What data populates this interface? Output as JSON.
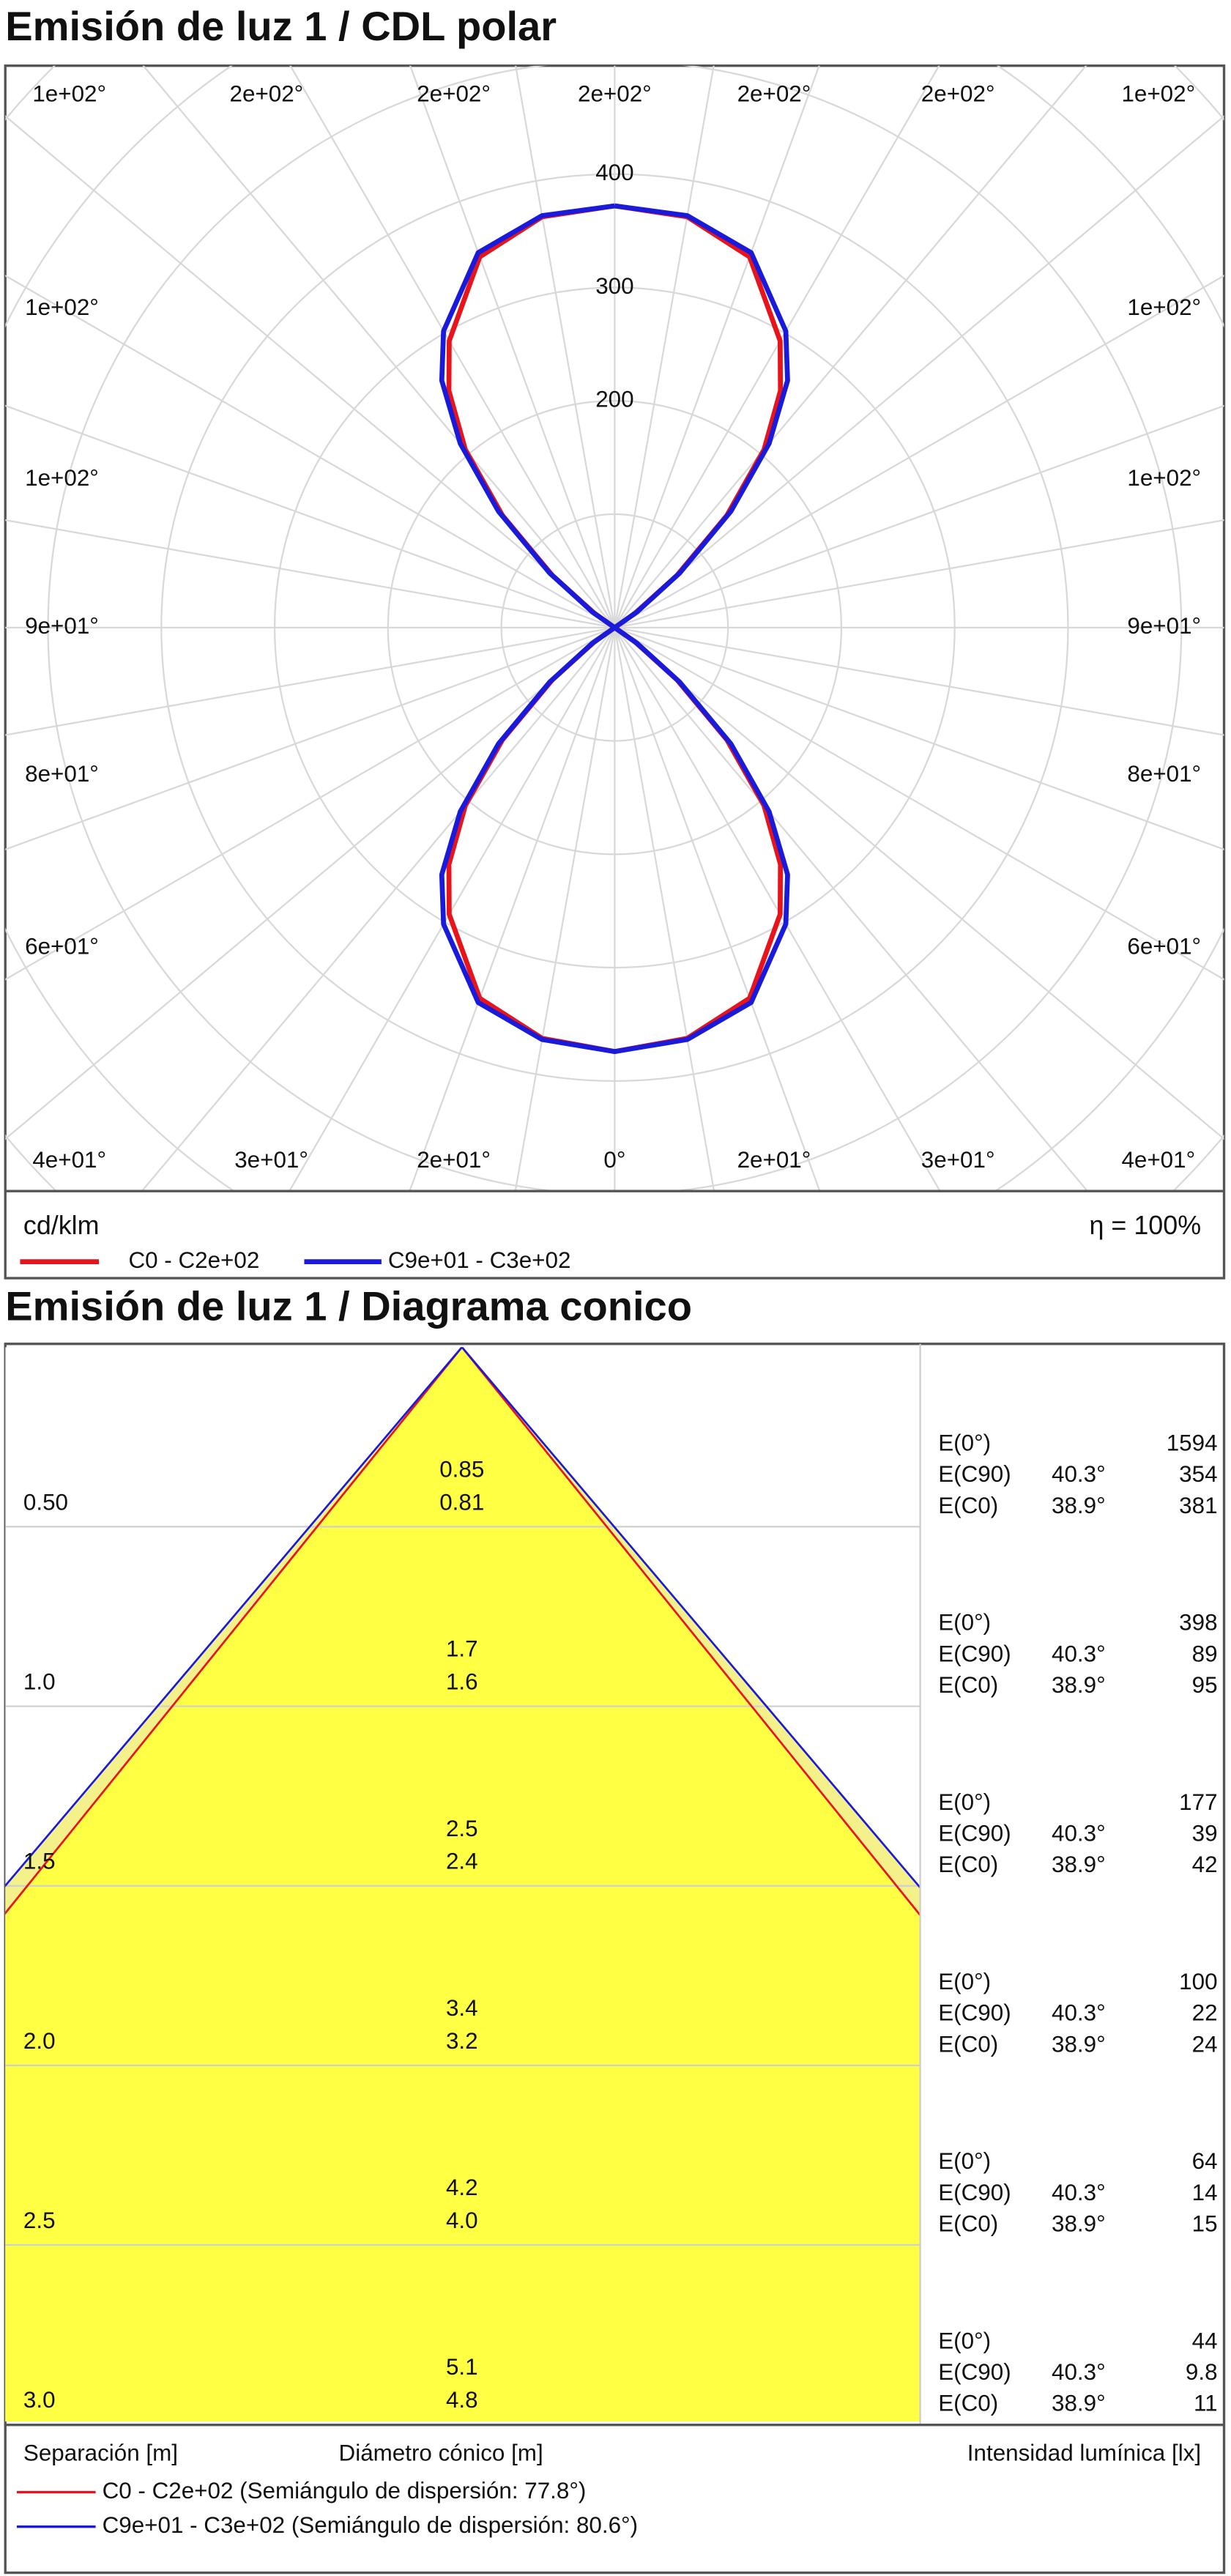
{
  "chart_data": [
    {
      "type": "polar",
      "title": "Emisión de luz 1 / CDL polar",
      "unit_label": "cd/klm",
      "efficiency_label": "η = 100%",
      "angle_labels": {
        "top": [
          "1e+02°",
          "2e+02°",
          "2e+02°",
          "2e+02°",
          "2e+02°",
          "2e+02°",
          "1e+02°"
        ],
        "left": [
          "1e+02°",
          "1e+02°",
          "9e+01°",
          "8e+01°",
          "6e+01°"
        ],
        "right": [
          "1e+02°",
          "1e+02°",
          "9e+01°",
          "8e+01°",
          "6e+01°"
        ],
        "bottom": [
          "4e+01°",
          "3e+01°",
          "2e+01°",
          "0°",
          "2e+01°",
          "3e+01°",
          "4e+01°"
        ]
      },
      "rlim": [
        0,
        500
      ],
      "rticks": [
        200,
        300,
        400
      ],
      "x": [
        -180,
        -170,
        -160,
        -150,
        -145,
        -140,
        -135,
        -130,
        -125,
        -120,
        -110,
        -90,
        -70,
        -60,
        -55,
        -50,
        -45,
        -40,
        -35,
        -30,
        -20,
        -10,
        0,
        10,
        20,
        30,
        35,
        40,
        45,
        50,
        55,
        60,
        70,
        90,
        110,
        120,
        125,
        130,
        135,
        140,
        145,
        150,
        160,
        170,
        180
      ],
      "series": [
        {
          "name": "C0 - C2e+02",
          "color": "#e8141c",
          "values": [
            372,
            368,
            348,
            292,
            255,
            205,
            140,
            72,
            22,
            0,
            0,
            0,
            0,
            0,
            22,
            72,
            140,
            205,
            255,
            292,
            348,
            368,
            374,
            368,
            348,
            292,
            255,
            205,
            140,
            72,
            22,
            0,
            0,
            0,
            0,
            0,
            22,
            72,
            140,
            205,
            255,
            292,
            348,
            368,
            372
          ]
        },
        {
          "name": "C9e+01 - C3e+02",
          "color": "#1a1adb",
          "values": [
            372,
            369,
            352,
            302,
            266,
            212,
            145,
            75,
            24,
            0,
            0,
            0,
            0,
            0,
            24,
            75,
            145,
            212,
            266,
            302,
            352,
            369,
            374,
            369,
            352,
            302,
            266,
            212,
            145,
            75,
            24,
            0,
            0,
            0,
            0,
            0,
            24,
            75,
            145,
            212,
            266,
            302,
            352,
            369,
            372
          ]
        }
      ]
    },
    {
      "type": "cone",
      "title": "Emisión de luz 1 / Diagrama conico",
      "x_label": "Separación [m]",
      "diameter_label": "Diámetro cónico [m]",
      "illuminance_label": "Intensidad lumínica [lx]",
      "distances": [
        {
          "value": 0.5,
          "label": "0.50"
        },
        {
          "value": 1,
          "label": "1.0"
        },
        1.5,
        {
          "value": 2,
          "label": "2.0"
        },
        2.5,
        {
          "value": 3,
          "label": "3.0"
        }
      ],
      "center": {
        "e_label": "E(0°)",
        "illuminance": [
          1594,
          398,
          177,
          100,
          64,
          44
        ]
      },
      "series": [
        {
          "name": "C0 - C2e+02 (Semiángulo de dispersión: 77.8°)",
          "color": "#e8141c",
          "e_label": "E(C0)",
          "half_angle": 38.9,
          "half_angle_label": "38.9°",
          "diameters": [
            0.81,
            1.6,
            2.4,
            3.2,
            {
              "value": 4,
              "label": "4.0"
            },
            4.8
          ],
          "illuminance": [
            381,
            95,
            42,
            24,
            15,
            11
          ]
        },
        {
          "name": "C9e+01 - C3e+02 (Semiángulo de dispersión: 80.6°)",
          "color": "#1a1adb",
          "e_label": "E(C90)",
          "half_angle": 40.3,
          "half_angle_label": "40.3°",
          "diameters": [
            0.85,
            1.7,
            2.5,
            3.4,
            4.2,
            5.1
          ],
          "illuminance": [
            354,
            89,
            39,
            22,
            14,
            9.8
          ]
        }
      ]
    }
  ]
}
